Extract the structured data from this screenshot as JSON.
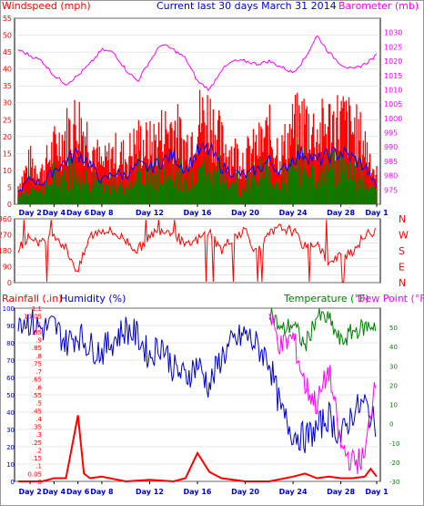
{
  "header": {
    "left": "Windspeed (mph)",
    "center": "Current last 30 days March 31 2014",
    "right": "Barometer (mb)"
  },
  "bottom_header": {
    "rain": "Rainfall (.in)",
    "humidity": "Humidity (%)",
    "temperature": "Temperature (°F)",
    "dewpoint": "Dew Point (°F)"
  },
  "x_ticks": [
    "Day 2",
    "Day 4",
    "Day 6",
    "Day 8",
    "Day 12",
    "Day 16",
    "Day 20",
    "Day 24",
    "Day 28",
    "Day 1"
  ],
  "direction_letters": [
    "N",
    "W",
    "S",
    "E",
    "N"
  ],
  "colors": {
    "frame": "#000000",
    "grid": "#d0d0d0",
    "wind": "#ff0000",
    "wind_avg": "#0000ff",
    "gust": "#008000",
    "baro": "#ff00ff",
    "dir": "#ff0000",
    "rain": "#ff0000",
    "humidity": "#0000cc",
    "temperature": "#008000",
    "dewpoint": "#ff00ff",
    "axis_red": "#ff0000",
    "axis_blue": "#0000cc",
    "axis_green": "#008000"
  },
  "chart_data": [
    {
      "type": "bar",
      "title": "Current last 30 days March 31 2014",
      "ylabel": "Windspeed (mph)",
      "y2label": "Barometer (mb)",
      "ylim": [
        0,
        55
      ],
      "y2lim": [
        970,
        1035
      ],
      "yticks": [
        0,
        5,
        10,
        15,
        20,
        25,
        30,
        35,
        40,
        45,
        50,
        55
      ],
      "y2ticks": [
        975,
        980,
        985,
        990,
        995,
        1000,
        1005,
        1010,
        1015,
        1020,
        1025,
        1030
      ],
      "x_days": [
        2,
        4,
        6,
        8,
        12,
        16,
        20,
        24,
        28,
        31
      ],
      "series": [
        {
          "name": "Windspeed (mph)",
          "x": [
            1,
            2,
            3,
            4,
            5,
            6,
            7,
            8,
            9,
            10,
            11,
            12,
            13,
            14,
            15,
            16,
            17,
            18,
            19,
            20,
            21,
            22,
            23,
            24,
            25,
            26,
            27,
            28,
            29,
            30,
            31
          ],
          "values": [
            8,
            18,
            14,
            24,
            30,
            36,
            28,
            16,
            22,
            20,
            27,
            25,
            30,
            34,
            24,
            36,
            38,
            26,
            22,
            20,
            24,
            30,
            22,
            32,
            36,
            30,
            34,
            36,
            32,
            26,
            12
          ]
        },
        {
          "name": "Barometer (mb)",
          "x": [
            1,
            2,
            3,
            4,
            5,
            6,
            7,
            8,
            9,
            10,
            11,
            12,
            13,
            14,
            15,
            16,
            17,
            18,
            19,
            20,
            21,
            22,
            23,
            24,
            25,
            26,
            27,
            28,
            29,
            30,
            31
          ],
          "values": [
            1024,
            1022,
            1020,
            1015,
            1012,
            1015,
            1019,
            1024,
            1023,
            1017,
            1013,
            1020,
            1026,
            1024,
            1021,
            1013,
            1010,
            1017,
            1020,
            1020,
            1019,
            1020,
            1018,
            1016,
            1021,
            1029,
            1023,
            1019,
            1017,
            1019,
            1022
          ]
        }
      ]
    },
    {
      "type": "line",
      "ylabel": "Wind direction",
      "ylim": [
        0,
        360
      ],
      "yticks": [
        0,
        45,
        90,
        135,
        180,
        225,
        270,
        315,
        360
      ],
      "series": [
        {
          "name": "Wind direction",
          "x": [
            1,
            2,
            3,
            4,
            5,
            6,
            7,
            8,
            9,
            10,
            11,
            12,
            13,
            14,
            15,
            16,
            17,
            18,
            19,
            20,
            21,
            22,
            23,
            24,
            25,
            26,
            27,
            28,
            29,
            30,
            31
          ],
          "values": [
            200,
            260,
            220,
            280,
            190,
            60,
            260,
            300,
            280,
            240,
            180,
            270,
            300,
            290,
            200,
            240,
            290,
            180,
            260,
            300,
            160,
            270,
            310,
            290,
            200,
            230,
            100,
            150,
            180,
            260,
            300
          ]
        }
      ]
    },
    {
      "type": "line",
      "ylabel": "Rainfall (.in)",
      "y2label": "Humidity (%)",
      "y3label": "Temperature (°F)",
      "y4label": "Dew Point (°F)",
      "rain_ylim": [
        0,
        1.1
      ],
      "humidity_ylim": [
        0,
        100
      ],
      "temp_ylim": [
        -30,
        60
      ],
      "rain_ticks": [
        0,
        0.05,
        0.1,
        0.15,
        0.2,
        0.25,
        0.3,
        0.35,
        0.4,
        0.45,
        0.5,
        0.55,
        0.6,
        0.65,
        0.7,
        0.75,
        0.8,
        0.85,
        0.9,
        0.95,
        1,
        1.05,
        1.1
      ],
      "humidity_ticks": [
        0,
        10,
        20,
        30,
        40,
        50,
        60,
        70,
        80,
        90,
        100
      ],
      "temp_ticks": [
        -30,
        -20,
        -10,
        0,
        10,
        20,
        30,
        40,
        50
      ],
      "series": [
        {
          "name": "Rainfall (.in)",
          "x": [
            1,
            2,
            3,
            4,
            5,
            6,
            6.5,
            7,
            8,
            10,
            12,
            14,
            15,
            16,
            17,
            18,
            20,
            22,
            24,
            25,
            26,
            27,
            28,
            29,
            30,
            30.5,
            31
          ],
          "values": [
            0,
            0,
            0,
            0.02,
            0.02,
            0.42,
            0.05,
            0.02,
            0.03,
            0,
            0.01,
            0,
            0.02,
            0.18,
            0.06,
            0.02,
            0,
            0,
            0.03,
            0.05,
            0.02,
            0.03,
            0.02,
            0.02,
            0.03,
            0.08,
            0.03
          ]
        },
        {
          "name": "Humidity (%)",
          "x": [
            1,
            2,
            3,
            4,
            5,
            6,
            7,
            8,
            9,
            10,
            11,
            12,
            13,
            14,
            15,
            16,
            17,
            18,
            19,
            20,
            21,
            22,
            23,
            24,
            25,
            26,
            27,
            28,
            29,
            30,
            31
          ],
          "values": [
            95,
            92,
            88,
            90,
            80,
            85,
            78,
            75,
            82,
            88,
            84,
            72,
            80,
            65,
            60,
            68,
            55,
            72,
            80,
            85,
            78,
            70,
            40,
            28,
            25,
            30,
            38,
            25,
            40,
            45,
            30
          ]
        },
        {
          "name": "Temperature (°F)",
          "x": [
            22,
            23,
            24,
            25,
            26,
            27,
            28,
            29,
            30,
            31
          ],
          "values": [
            60,
            48,
            52,
            40,
            56,
            54,
            42,
            48,
            50,
            52
          ]
        },
        {
          "name": "Dew Point (°F)",
          "x": [
            22,
            23,
            24,
            25,
            26,
            27,
            28,
            29,
            30,
            31
          ],
          "values": [
            56,
            40,
            45,
            20,
            10,
            28,
            -12,
            -20,
            -18,
            30
          ]
        }
      ]
    }
  ]
}
